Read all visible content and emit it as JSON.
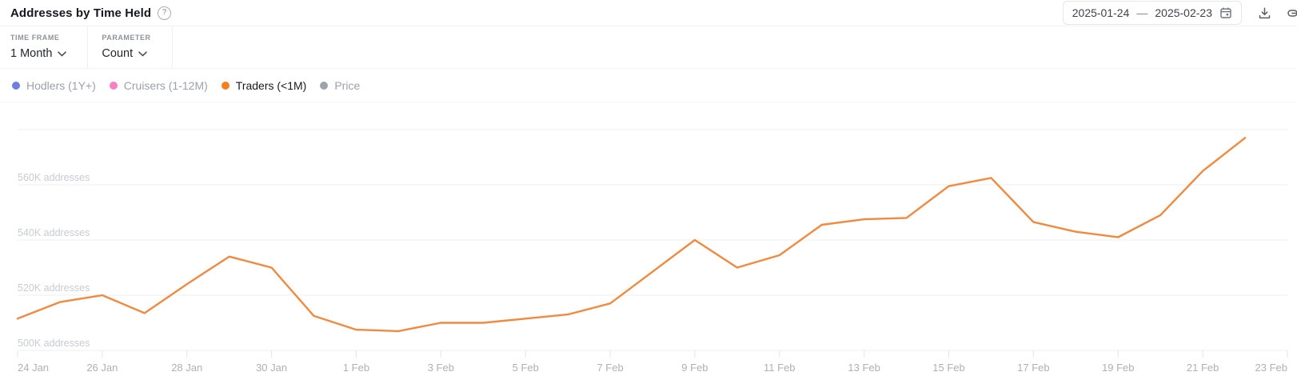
{
  "header": {
    "title": "Addresses by Time Held",
    "date_range": {
      "start": "2025-01-24",
      "separator": "—",
      "end": "2025-02-23"
    }
  },
  "toolbar": {
    "time_frame": {
      "label": "TIME FRAME",
      "value": "1 Month"
    },
    "parameter": {
      "label": "PARAMETER",
      "value": "Count"
    }
  },
  "legend": {
    "items": [
      {
        "label": "Hodlers (1Y+)",
        "color": "#6e7fe4",
        "active": false
      },
      {
        "label": "Cruisers (1-12M)",
        "color": "#f980c4",
        "active": false
      },
      {
        "label": "Traders (<1M)",
        "color": "#f6801e",
        "active": true
      },
      {
        "label": "Price",
        "color": "#9ca3ab",
        "active": false
      }
    ]
  },
  "chart_data": {
    "type": "line",
    "title": "Addresses by Time Held",
    "legend_position": "top-left",
    "grid": true,
    "x_tick_labels": [
      "24 Jan",
      "26 Jan",
      "28 Jan",
      "30 Jan",
      "1 Feb",
      "3 Feb",
      "5 Feb",
      "7 Feb",
      "9 Feb",
      "11 Feb",
      "13 Feb",
      "15 Feb",
      "17 Feb",
      "19 Feb",
      "21 Feb",
      "23 Feb"
    ],
    "x_axis_days_span": 30,
    "y_axis": {
      "unit": "addresses",
      "range_k": [
        500,
        580
      ],
      "gridlines_k": [
        500,
        520,
        540,
        560,
        580
      ],
      "labels": [
        {
          "value_k": 500,
          "label": "500K addresses"
        },
        {
          "value_k": 520,
          "label": "520K addresses"
        },
        {
          "value_k": 540,
          "label": "540K addresses"
        },
        {
          "value_k": 560,
          "label": "560K addresses"
        }
      ]
    },
    "series": [
      {
        "name": "Traders (<1M)",
        "color": "#ef8a40",
        "x": [
          "24 Jan",
          "25 Jan",
          "26 Jan",
          "27 Jan",
          "28 Jan",
          "29 Jan",
          "30 Jan",
          "31 Jan",
          "1 Feb",
          "2 Feb",
          "3 Feb",
          "4 Feb",
          "5 Feb",
          "6 Feb",
          "7 Feb",
          "8 Feb",
          "9 Feb",
          "10 Feb",
          "11 Feb",
          "12 Feb",
          "13 Feb",
          "14 Feb",
          "15 Feb",
          "16 Feb",
          "17 Feb",
          "18 Feb",
          "19 Feb",
          "20 Feb",
          "21 Feb",
          "22 Feb"
        ],
        "values_k_addresses": [
          511.5,
          517.5,
          520,
          513.5,
          524,
          534,
          530,
          512.5,
          507.5,
          507,
          510,
          510,
          511.5,
          513,
          517,
          528.5,
          540,
          530,
          534.5,
          545.5,
          547.5,
          548,
          559.5,
          562.5,
          546.5,
          543,
          541,
          549,
          565,
          577
        ]
      }
    ]
  }
}
